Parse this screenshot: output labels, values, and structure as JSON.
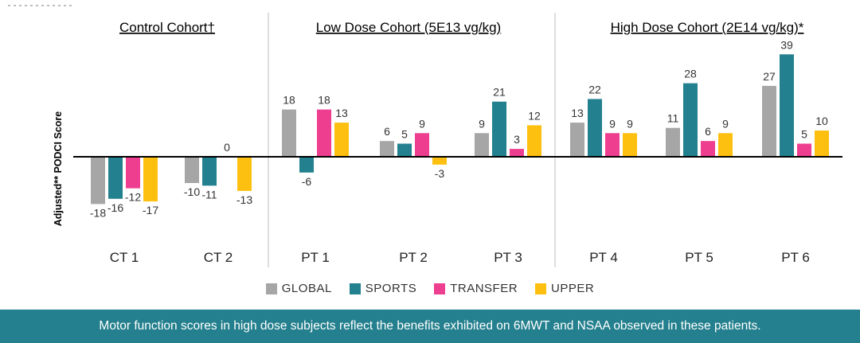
{
  "chart_data": {
    "type": "bar",
    "ylabel": "Adjusted** PODCI Score",
    "cohorts": [
      {
        "title": "Control Cohort†",
        "categories": [
          "CT 1",
          "CT 2"
        ]
      },
      {
        "title": "Low Dose Cohort (5E13 vg/kg)",
        "categories": [
          "PT 1",
          "PT 2",
          "PT 3"
        ]
      },
      {
        "title": "High Dose Cohort (2E14 vg/kg)*",
        "categories": [
          "PT 4",
          "PT 5",
          "PT 6"
        ]
      }
    ],
    "categories": [
      "CT 1",
      "CT 2",
      "PT 1",
      "PT 2",
      "PT 3",
      "PT 4",
      "PT 5",
      "PT 6"
    ],
    "series": [
      {
        "name": "GLOBAL",
        "color": "#a6a6a6",
        "values": [
          -18,
          -10,
          18,
          6,
          9,
          13,
          11,
          27
        ]
      },
      {
        "name": "SPORTS",
        "color": "#23808f",
        "values": [
          -16,
          -11,
          -6,
          5,
          21,
          22,
          28,
          39
        ]
      },
      {
        "name": "TRANSFER",
        "color": "#ee3e8f",
        "values": [
          -12,
          0,
          18,
          9,
          3,
          9,
          6,
          5
        ]
      },
      {
        "name": "UPPER",
        "color": "#fdc010",
        "values": [
          -17,
          -13,
          13,
          -3,
          12,
          9,
          9,
          10
        ]
      }
    ],
    "ylim": [
      -24,
      42
    ],
    "grid": false,
    "legend_position": "bottom"
  },
  "banner": {
    "text": "Motor function scores in high dose subjects reflect the benefits exhibited on 6MWT and NSAA observed in these patients."
  }
}
